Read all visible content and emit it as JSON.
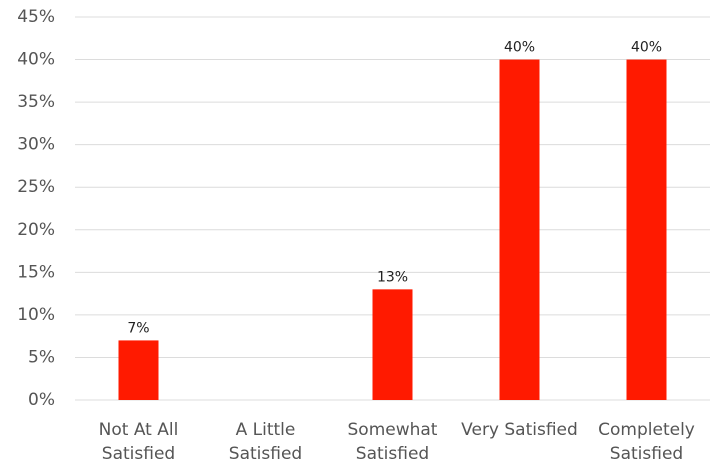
{
  "chart_data": {
    "type": "bar",
    "categories": [
      "Not At All Satisfied",
      "A Little Satisfied",
      "Somewhat Satisfied",
      "Very Satisfied",
      "Completely Satisfied"
    ],
    "values": [
      7,
      0,
      13,
      40,
      40
    ],
    "value_labels": [
      "7%",
      null,
      "13%",
      "40%",
      "40%"
    ],
    "color": "#ff1a00",
    "ylim": [
      0,
      45
    ],
    "yticks": [
      {
        "value": 0,
        "label": "0%"
      },
      {
        "value": 5,
        "label": "5%"
      },
      {
        "value": 10,
        "label": "10%"
      },
      {
        "value": 15,
        "label": "15%"
      },
      {
        "value": 20,
        "label": "20%"
      },
      {
        "value": 25,
        "label": "25%"
      },
      {
        "value": 30,
        "label": "30%"
      },
      {
        "value": 35,
        "label": "35%"
      },
      {
        "value": 40,
        "label": "40%"
      },
      {
        "value": 45,
        "label": "45%"
      }
    ],
    "grid": true
  }
}
